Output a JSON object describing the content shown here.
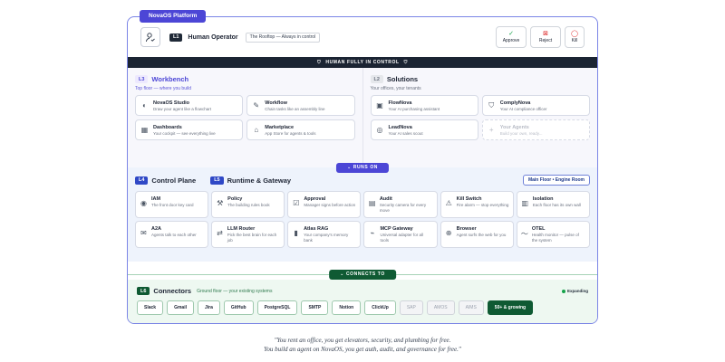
{
  "platform_tag": "NovaOS Platform",
  "l1": {
    "badge": "L1",
    "title": "Human Operator",
    "note": "The Rooftop — Always in control",
    "actions": [
      {
        "label": "Approve",
        "icon": "check-circle-icon"
      },
      {
        "label": "Reject",
        "icon": "x-square-icon"
      },
      {
        "label": "Kill",
        "icon": "stop-circle-icon"
      }
    ]
  },
  "control_bar": "HUMAN FULLY IN CONTROL",
  "workbench": {
    "badge": "L3",
    "title": "Workbench",
    "subtitle": "Top floor — where you build",
    "items": [
      {
        "title": "NovaOS Studio",
        "desc": "Draw your agent like a flowchart",
        "icon": "palette-icon"
      },
      {
        "title": "Workflow",
        "desc": "Chain tasks like an assembly line",
        "icon": "pencil-icon"
      },
      {
        "title": "Dashboards",
        "desc": "Your cockpit — see everything live",
        "icon": "grid-icon"
      },
      {
        "title": "Marketplace",
        "desc": "App Store for agents & tools",
        "icon": "shop-icon"
      }
    ]
  },
  "solutions": {
    "badge": "L2",
    "title": "Solutions",
    "subtitle": "Your offices, your tenants",
    "items": [
      {
        "title": "FlowNova",
        "desc": "Your AI purchasing assistant",
        "icon": "box-icon"
      },
      {
        "title": "ComplyNova",
        "desc": "Your AI compliance officer",
        "icon": "shield-icon"
      },
      {
        "title": "LeadNova",
        "desc": "Your AI sales scout",
        "icon": "target-icon"
      },
      {
        "title": "Your Agents",
        "desc": "Build your own, ready...",
        "icon": "plus-icon"
      }
    ]
  },
  "runs_on": "RUNS ON",
  "control_plane": {
    "badge": "L4",
    "title": "Control Plane"
  },
  "runtime": {
    "badge": "L5",
    "title": "Runtime & Gateway"
  },
  "floor_button": "Main Floor • Engine Room",
  "services": [
    {
      "title": "IAM",
      "desc": "The front door key card",
      "icon": "fingerprint-icon"
    },
    {
      "title": "Policy",
      "desc": "The building rules book",
      "icon": "gavel-icon"
    },
    {
      "title": "Approval",
      "desc": "Manager signs before action",
      "icon": "ballot-icon"
    },
    {
      "title": "Audit",
      "desc": "Security camera for every move",
      "icon": "log-icon"
    },
    {
      "title": "Kill Switch",
      "desc": "Fire alarm — stop everything",
      "icon": "alarm-icon"
    },
    {
      "title": "Isolation",
      "desc": "Each floor has its own wall",
      "icon": "wall-icon"
    },
    {
      "title": "A2A",
      "desc": "Agents talk to each other",
      "icon": "chat-icon"
    },
    {
      "title": "LLM Router",
      "desc": "Pick the best brain for each job",
      "icon": "router-icon"
    },
    {
      "title": "Atlas RAG",
      "desc": "Your company's memory bank",
      "icon": "book-icon"
    },
    {
      "title": "MCP Gateway",
      "desc": "Universal adapter for all tools",
      "icon": "plug-icon"
    },
    {
      "title": "Browser",
      "desc": "Agent surfs the web for you",
      "icon": "globe-icon"
    },
    {
      "title": "OTEL",
      "desc": "Health monitor — pulse of the system",
      "icon": "pulse-icon"
    }
  ],
  "connects_to": "CONNECTS TO",
  "connectors": {
    "badge": "L6",
    "title": "Connectors",
    "subtitle": "Ground floor — your existing systems",
    "status": "Expanding",
    "chips": [
      {
        "label": "Slack",
        "style": "normal"
      },
      {
        "label": "Gmail",
        "style": "normal"
      },
      {
        "label": "Jira",
        "style": "normal"
      },
      {
        "label": "GitHub",
        "style": "normal"
      },
      {
        "label": "PostgreSQL",
        "style": "normal"
      },
      {
        "label": "SMTP",
        "style": "normal"
      },
      {
        "label": "Notion",
        "style": "normal"
      },
      {
        "label": "ClickUp",
        "style": "normal"
      },
      {
        "label": "SAP",
        "style": "muted"
      },
      {
        "label": "AMOS",
        "style": "muted"
      },
      {
        "label": "AIMS",
        "style": "muted"
      },
      {
        "label": "50+ & growing",
        "style": "strong"
      }
    ]
  },
  "quote": {
    "line1": "\"You rent an office, you get elevators, security, and plumbing for free.",
    "line2": "You build an agent on NovaOS, you get auth, audit, and governance for free.\""
  },
  "colors": {
    "brand": "#4c46d6",
    "dark_bar": "#1b2433",
    "green": "#0f5a33",
    "blue": "#2f48c6"
  }
}
